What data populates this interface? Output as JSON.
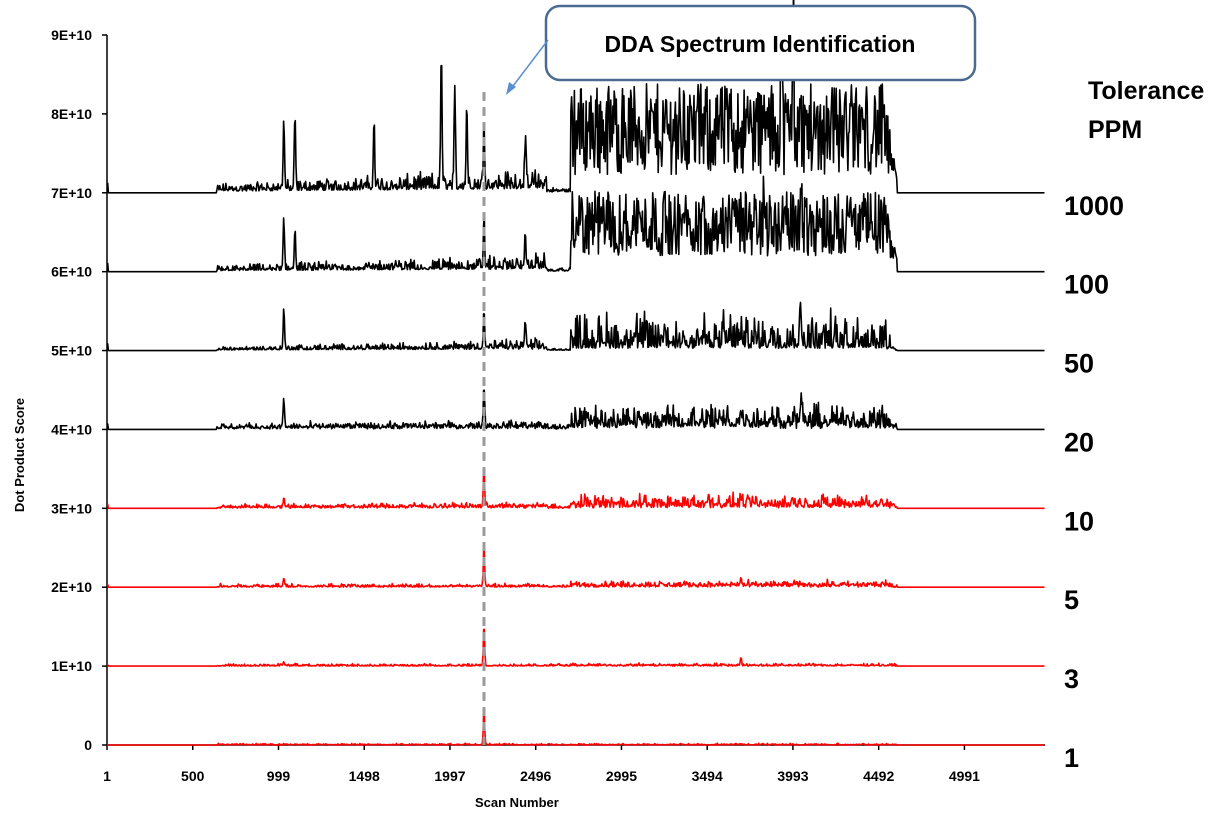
{
  "chart_data": {
    "type": "line",
    "xlabel": "Scan Number",
    "ylabel": "Dot Product Score",
    "x_ticks": [
      "1",
      "500",
      "999",
      "1498",
      "1997",
      "2496",
      "2995",
      "3494",
      "3993",
      "4492",
      "4991"
    ],
    "y_ticks": [
      "0",
      "1E+10",
      "2E+10",
      "3E+10",
      "4E+10",
      "5E+10",
      "6E+10",
      "7E+10",
      "8E+10",
      "9E+10"
    ],
    "xlim": [
      1,
      5460
    ],
    "ylim": [
      0,
      90000000000
    ],
    "legend_header": [
      "Tolerance",
      "PPM"
    ],
    "annotation": {
      "text": "DDA Spectrum Identification",
      "scan": 2195
    },
    "series": [
      {
        "name": "1000",
        "offset": 70000000000,
        "color": "#000000",
        "peaks": [
          [
            1030,
            9000000000
          ],
          [
            1095,
            9000000000
          ],
          [
            1555,
            8500000000
          ],
          [
            1947,
            17500000000
          ],
          [
            2025,
            11500000000
          ],
          [
            2095,
            10500000000
          ],
          [
            2195,
            8500000000
          ],
          [
            2435,
            5000000000
          ],
          [
            3925,
            16000000000
          ],
          [
            3995,
            16000000000
          ],
          [
            4220,
            10000000000
          ]
        ]
      },
      {
        "name": "100",
        "offset": 60000000000,
        "color": "#000000",
        "peaks": [
          [
            1030,
            6500000000
          ],
          [
            1095,
            5000000000
          ],
          [
            2195,
            6000000000
          ],
          [
            2435,
            4500000000
          ],
          [
            3825,
            4000000000
          ],
          [
            4040,
            5500000000
          ]
        ]
      },
      {
        "name": "50",
        "offset": 50000000000,
        "color": "#000000",
        "peaks": [
          [
            1030,
            5000000000
          ],
          [
            2195,
            5000000000
          ],
          [
            2435,
            3500000000
          ],
          [
            4040,
            3000000000
          ]
        ]
      },
      {
        "name": "20",
        "offset": 40000000000,
        "color": "#000000",
        "peaks": [
          [
            1030,
            3800000000
          ],
          [
            2195,
            5500000000
          ],
          [
            3690,
            2000000000
          ],
          [
            4040,
            2000000000
          ]
        ]
      },
      {
        "name": "10",
        "offset": 30000000000,
        "color": "#ff0000",
        "peaks": [
          [
            1030,
            1000000000
          ],
          [
            2195,
            5000000000
          ],
          [
            3690,
            1200000000
          ]
        ]
      },
      {
        "name": "5",
        "offset": 20000000000,
        "color": "#ff0000",
        "peaks": [
          [
            1030,
            1000000000
          ],
          [
            2195,
            5000000000
          ],
          [
            3690,
            1000000000
          ]
        ]
      },
      {
        "name": "3",
        "offset": 10000000000,
        "color": "#ff0000",
        "peaks": [
          [
            1030,
            500000000
          ],
          [
            2195,
            5000000000
          ],
          [
            3690,
            1000000000
          ]
        ]
      },
      {
        "name": "1",
        "offset": 0,
        "color": "#ff0000",
        "peaks": [
          [
            2195,
            4500000000
          ]
        ]
      }
    ]
  }
}
